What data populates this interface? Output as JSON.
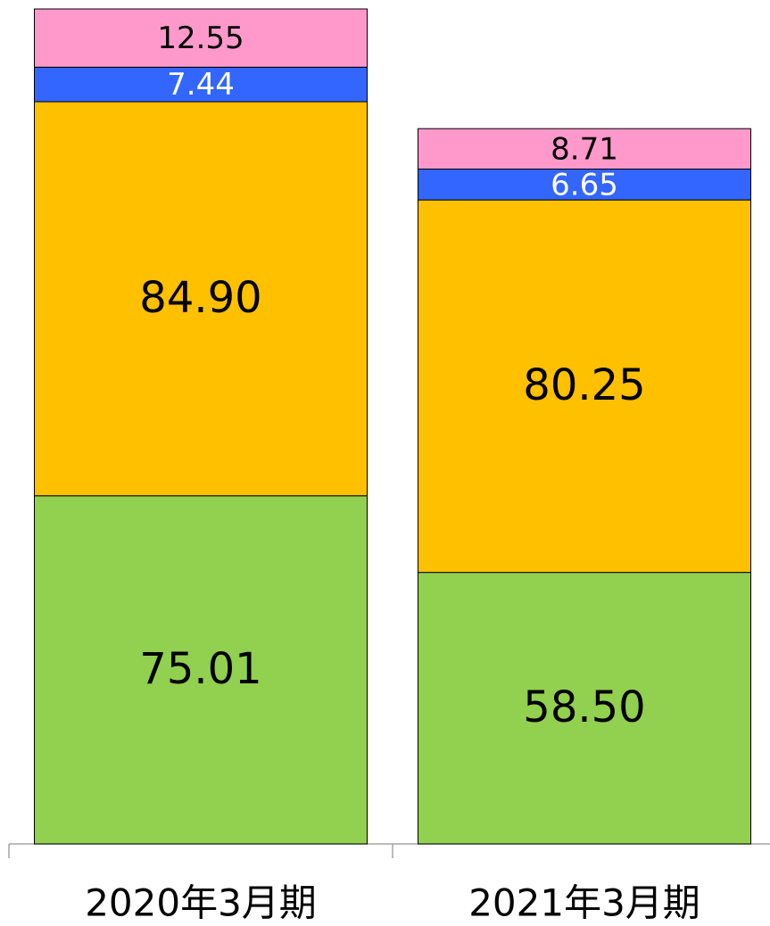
{
  "chart_data": {
    "type": "stacked_bar",
    "categories": [
      "2020年3月期",
      "2021年3月期"
    ],
    "series": [
      {
        "color": "#92d050",
        "label_color": "#000000",
        "values": [
          75.01,
          58.5
        ],
        "value_labels": [
          "75.01",
          "58.50"
        ]
      },
      {
        "color": "#ffc000",
        "label_color": "#000000",
        "values": [
          84.9,
          80.25
        ],
        "value_labels": [
          "84.90",
          "80.25"
        ]
      },
      {
        "color": "#3366ff",
        "label_color": "#ffffff",
        "values": [
          7.44,
          6.65
        ],
        "value_labels": [
          "7.44",
          "6.65"
        ]
      },
      {
        "color": "#ff99cc",
        "label_color": "#000000",
        "values": [
          12.55,
          8.71
        ],
        "value_labels": [
          "12.55",
          "8.71"
        ]
      }
    ],
    "ylim": [
      0,
      180
    ]
  }
}
